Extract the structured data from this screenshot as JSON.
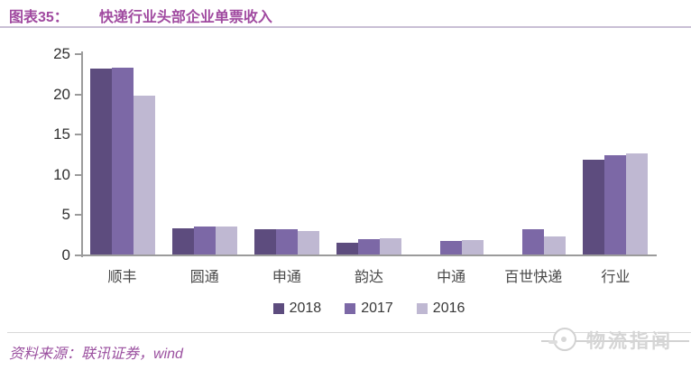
{
  "header": {
    "figure_label": "图表35：",
    "title": "快递行业头部企业单票收入"
  },
  "chart_data": {
    "type": "bar",
    "categories": [
      "顺丰",
      "圆通",
      "申通",
      "韵达",
      "中通",
      "百世快递",
      "行业"
    ],
    "series": [
      {
        "name": "2018",
        "color": "#5D4C7E",
        "values": [
          23.2,
          3.4,
          3.2,
          1.6,
          null,
          null,
          11.9
        ]
      },
      {
        "name": "2017",
        "color": "#7C68A6",
        "values": [
          23.3,
          3.6,
          3.2,
          2.0,
          1.8,
          3.3,
          12.4
        ]
      },
      {
        "name": "2016",
        "color": "#BFB8D2",
        "values": [
          19.8,
          3.6,
          3.0,
          2.1,
          1.9,
          2.4,
          12.7
        ]
      }
    ],
    "title": "快递行业头部企业单票收入",
    "xlabel": "",
    "ylabel": "",
    "ylim": [
      0,
      25
    ],
    "yticks": [
      0,
      5,
      10,
      15,
      20,
      25
    ],
    "grid": false,
    "legend_position": "bottom"
  },
  "footer": {
    "source_label": "资料来源：",
    "source_text": "联讯证券，wind"
  },
  "watermark": {
    "text": "物流指闻",
    "icon": "mascot-bird-icon"
  },
  "colors": {
    "title_purple": "#A04AA0",
    "axis_gray": "#9B9B9B",
    "source_purple": "#9A4F9F",
    "watermark_gray": "#D5D5D5"
  }
}
